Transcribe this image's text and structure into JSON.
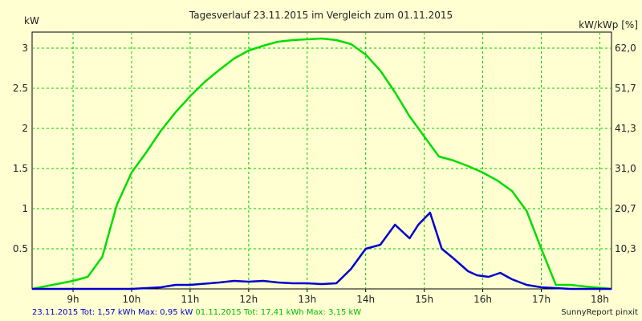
{
  "chart_data": {
    "type": "line",
    "title": "Tagesverlauf 23.11.2015 im Vergleich zum 01.11.2015",
    "ylabel_left": "kW",
    "ylabel_right": "kW/kWp [%]",
    "x_ticks": [
      "9h",
      "10h",
      "11h",
      "12h",
      "13h",
      "14h",
      "15h",
      "16h",
      "17h",
      "18h"
    ],
    "y_left_ticks": [
      "0.5",
      "1",
      "1.5",
      "2",
      "2.5",
      "3"
    ],
    "y_right_ticks": [
      "10,3",
      "20,7",
      "31,0",
      "41,3",
      "51,7",
      "62,0"
    ],
    "xlim": [
      8.3,
      18.2
    ],
    "ylim": [
      0,
      3.2
    ],
    "grid": true,
    "series": [
      {
        "name": "23.11.2015",
        "color": "#0000cc",
        "x": [
          8.3,
          10.0,
          10.5,
          10.75,
          11.0,
          11.5,
          11.75,
          12.0,
          12.25,
          12.5,
          12.75,
          13.0,
          13.25,
          13.5,
          13.75,
          14.0,
          14.25,
          14.5,
          14.75,
          14.9,
          15.1,
          15.3,
          15.5,
          15.75,
          15.9,
          16.1,
          16.3,
          16.5,
          16.75,
          17.0,
          17.5,
          17.75,
          18.2
        ],
        "y": [
          0,
          0,
          0.02,
          0.05,
          0.05,
          0.08,
          0.1,
          0.09,
          0.1,
          0.08,
          0.07,
          0.07,
          0.06,
          0.07,
          0.25,
          0.5,
          0.55,
          0.8,
          0.63,
          0.8,
          0.95,
          0.5,
          0.38,
          0.22,
          0.17,
          0.15,
          0.2,
          0.12,
          0.05,
          0.02,
          0,
          0,
          0
        ]
      },
      {
        "name": "01.11.2015",
        "color": "#00dd00",
        "x": [
          8.3,
          9.0,
          9.25,
          9.5,
          9.75,
          10.0,
          10.25,
          10.5,
          10.75,
          11.0,
          11.25,
          11.5,
          11.75,
          12.0,
          12.25,
          12.5,
          12.75,
          13.0,
          13.25,
          13.5,
          13.75,
          14.0,
          14.25,
          14.5,
          14.75,
          15.0,
          15.25,
          15.5,
          15.75,
          16.0,
          16.25,
          16.5,
          16.75,
          17.0,
          17.25,
          17.5,
          17.75,
          18.2
        ],
        "y": [
          0,
          0.1,
          0.15,
          0.4,
          1.05,
          1.45,
          1.7,
          1.97,
          2.2,
          2.4,
          2.58,
          2.73,
          2.87,
          2.97,
          3.03,
          3.08,
          3.1,
          3.11,
          3.12,
          3.1,
          3.05,
          2.92,
          2.72,
          2.45,
          2.15,
          1.9,
          1.65,
          1.6,
          1.53,
          1.45,
          1.35,
          1.22,
          0.97,
          0.5,
          0.05,
          0.05,
          0.03,
          0
        ]
      }
    ]
  },
  "footer": {
    "left_blue": "23.11.2015 Tot: 1,57 kWh Max: 0,95 kW",
    "left_green": "01.11.2015 Tot: 17,41 kWh Max: 3,15 kW",
    "right": "SunnyReport pinxit"
  }
}
